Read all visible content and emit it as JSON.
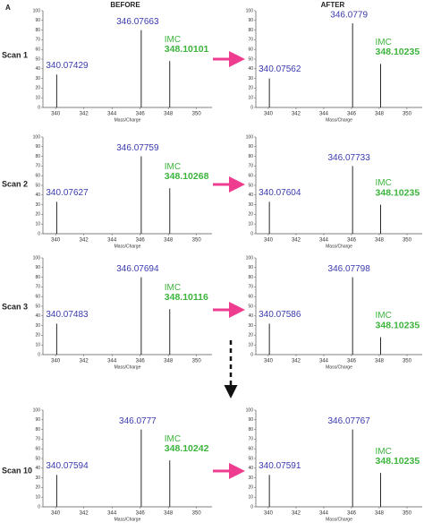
{
  "panel_label": "A",
  "column_titles": [
    "BEFORE",
    "AFTER"
  ],
  "row_labels": [
    "Scan 1",
    "Scan 2",
    "Scan 3",
    "Scan 10"
  ],
  "chart_data": [
    {
      "type": "stem",
      "xlabel": "Mass/Charge",
      "annotation": "IMC",
      "x": [
        340.07429,
        346.07663,
        348.10101
      ],
      "values": [
        34,
        80,
        48
      ],
      "xlim": [
        339.1,
        351.1
      ],
      "xticks": [
        340,
        342,
        344,
        346,
        348,
        350
      ],
      "ylim": [
        0,
        100
      ],
      "yticks": [
        0,
        10,
        20,
        30,
        40,
        50,
        60,
        70,
        80,
        90,
        100
      ],
      "color": "#111"
    },
    {
      "type": "stem",
      "xlabel": "Mass/Charge",
      "annotation": "IMC",
      "x": [
        340.07562,
        346.0779,
        348.10235
      ],
      "values": [
        30,
        87,
        45
      ],
      "xlim": [
        339.1,
        351.1
      ],
      "xticks": [
        340,
        342,
        344,
        346,
        348,
        350
      ],
      "ylim": [
        0,
        100
      ],
      "yticks": [
        0,
        10,
        20,
        30,
        40,
        50,
        60,
        70,
        80,
        90,
        100
      ],
      "color": "#111"
    },
    {
      "type": "stem",
      "xlabel": "Mass/Charge",
      "annotation": "IMC",
      "x": [
        340.07627,
        346.07759,
        348.10268
      ],
      "values": [
        33,
        80,
        47
      ],
      "xlim": [
        339.1,
        351.1
      ],
      "xticks": [
        340,
        342,
        344,
        346,
        348,
        350
      ],
      "ylim": [
        0,
        100
      ],
      "yticks": [
        0,
        10,
        20,
        30,
        40,
        50,
        60,
        70,
        80,
        90,
        100
      ],
      "color": "#111"
    },
    {
      "type": "stem",
      "xlabel": "Mass/Charge",
      "annotation": "IMC",
      "x": [
        340.07604,
        346.07733,
        348.10235
      ],
      "values": [
        33,
        70,
        30
      ],
      "xlim": [
        339.1,
        351.1
      ],
      "xticks": [
        340,
        342,
        344,
        346,
        348,
        350
      ],
      "ylim": [
        0,
        100
      ],
      "yticks": [
        0,
        10,
        20,
        30,
        40,
        50,
        60,
        70,
        80,
        90,
        100
      ],
      "color": "#111"
    },
    {
      "type": "stem",
      "xlabel": "Mass/Charge",
      "annotation": "IMC",
      "x": [
        340.07483,
        346.07694,
        348.10116
      ],
      "values": [
        32,
        80,
        47
      ],
      "xlim": [
        339.1,
        351.1
      ],
      "xticks": [
        340,
        342,
        344,
        346,
        348,
        350
      ],
      "ylim": [
        0,
        100
      ],
      "yticks": [
        0,
        10,
        20,
        30,
        40,
        50,
        60,
        70,
        80,
        90,
        100
      ],
      "color": "#111"
    },
    {
      "type": "stem",
      "xlabel": "Mass/Charge",
      "annotation": "IMC",
      "x": [
        340.07586,
        346.07798,
        348.10235
      ],
      "values": [
        32,
        80,
        18
      ],
      "xlim": [
        339.1,
        351.1
      ],
      "xticks": [
        340,
        342,
        344,
        346,
        348,
        350
      ],
      "ylim": [
        0,
        100
      ],
      "yticks": [
        0,
        10,
        20,
        30,
        40,
        50,
        60,
        70,
        80,
        90,
        100
      ],
      "color": "#111"
    },
    {
      "type": "stem",
      "xlabel": "Mass/Charge",
      "annotation": "IMC",
      "x": [
        340.07594,
        346.0777,
        348.10242
      ],
      "values": [
        33,
        80,
        48
      ],
      "xlim": [
        339.1,
        351.1
      ],
      "xticks": [
        340,
        342,
        344,
        346,
        348,
        350
      ],
      "ylim": [
        0,
        100
      ],
      "yticks": [
        0,
        10,
        20,
        30,
        40,
        50,
        60,
        70,
        80,
        90,
        100
      ],
      "color": "#111"
    },
    {
      "type": "stem",
      "xlabel": "Mass/Charge",
      "annotation": "IMC",
      "x": [
        340.07591,
        346.07767,
        348.10235
      ],
      "values": [
        33,
        80,
        35
      ],
      "xlim": [
        339.1,
        351.1
      ],
      "xticks": [
        340,
        342,
        344,
        346,
        348,
        350
      ],
      "ylim": [
        0,
        100
      ],
      "yticks": [
        0,
        10,
        20,
        30,
        40,
        50,
        60,
        70,
        80,
        90,
        100
      ],
      "color": "#111"
    }
  ]
}
